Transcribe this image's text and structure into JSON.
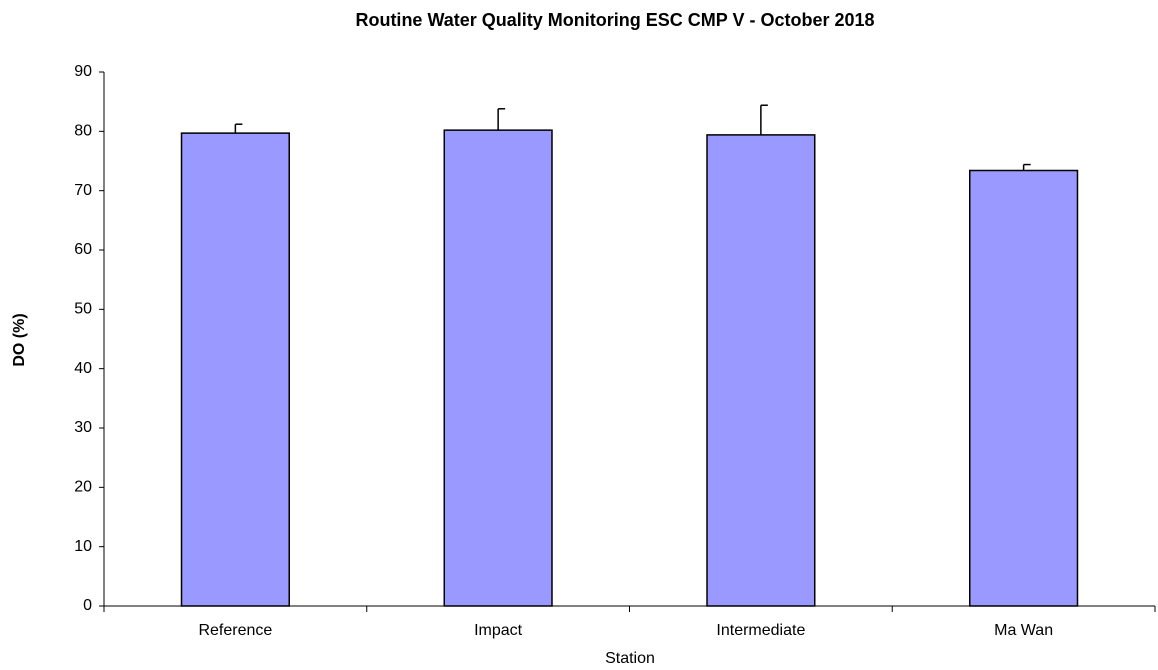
{
  "chart_data": {
    "type": "bar",
    "title": "Routine Water Quality Monitoring ESC CMP V - October 2018",
    "x_label": "Station",
    "y_label": "DO (%)",
    "categories": [
      "Reference",
      "Impact",
      "Intermediate",
      "Ma Wan"
    ],
    "values": [
      79.7,
      80.2,
      79.4,
      73.4
    ],
    "errors": [
      1.5,
      3.6,
      5.0,
      1.0
    ],
    "color": "#9999ff",
    "ylim": [
      0,
      90
    ],
    "yticks": [
      0,
      10,
      20,
      30,
      40,
      50,
      60,
      70,
      80,
      90
    ],
    "grid": false
  }
}
